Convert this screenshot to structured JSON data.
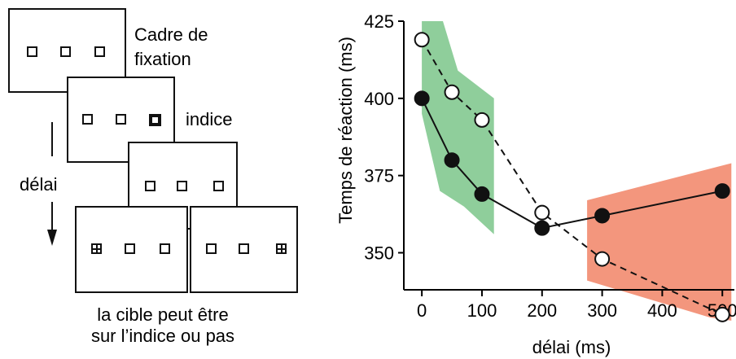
{
  "diagram": {
    "fixation_label_line1": "Cadre de",
    "fixation_label_line2": "fixation",
    "cue_label": "indice",
    "delay_label": "délai",
    "caption_line1": "la cible peut être",
    "caption_line2": "sur l’indice ou pas"
  },
  "chart_data": {
    "type": "line",
    "title": "",
    "xlabel": "délai (ms)",
    "ylabel": "Temps de réaction (ms)",
    "xlim": [
      -30,
      520
    ],
    "ylim": [
      338,
      425
    ],
    "xticks": [
      0,
      100,
      200,
      300,
      400,
      500
    ],
    "yticks": [
      350,
      375,
      400,
      425
    ],
    "grid": false,
    "series": [
      {
        "style": "solid",
        "marker": "filled",
        "x": [
          0,
          50,
          100,
          200,
          300,
          500
        ],
        "y": [
          400,
          380,
          369,
          358,
          362,
          370
        ]
      },
      {
        "style": "dashed",
        "marker": "open",
        "x": [
          0,
          50,
          100,
          200,
          300,
          500
        ],
        "y": [
          419,
          402,
          393,
          363,
          348,
          330
        ]
      }
    ],
    "regions": [
      {
        "color": "#8fce9b",
        "polygon": [
          [
            0,
            425
          ],
          [
            35,
            425
          ],
          [
            60,
            409
          ],
          [
            120,
            400
          ],
          [
            120,
            356
          ],
          [
            70,
            365
          ],
          [
            30,
            370
          ],
          [
            0,
            395
          ]
        ]
      },
      {
        "color": "#f3967d",
        "polygon": [
          [
            275,
            367
          ],
          [
            515,
            379
          ],
          [
            515,
            328
          ],
          [
            480,
            329
          ],
          [
            275,
            341
          ]
        ]
      }
    ],
    "colors": {
      "green_region": "#8fce9b",
      "orange_region": "#f3967d"
    }
  }
}
